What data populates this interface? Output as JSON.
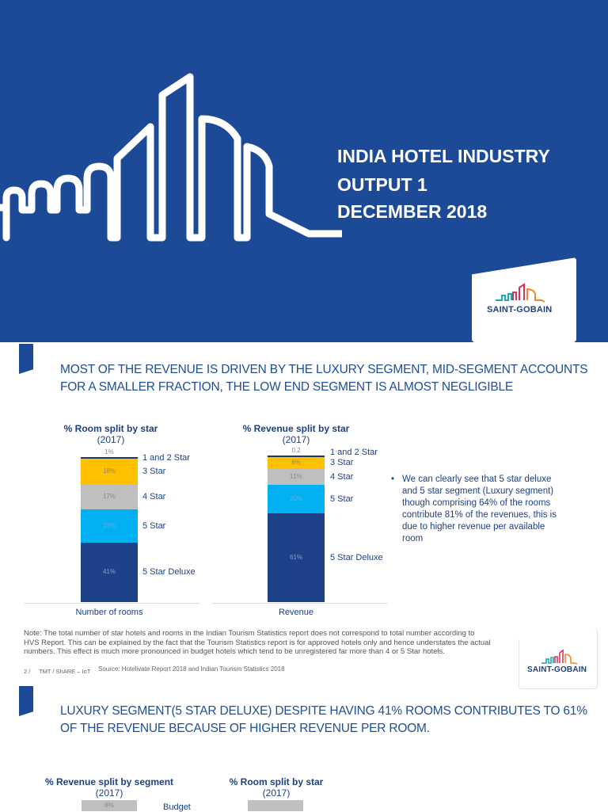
{
  "cover": {
    "title_lines": [
      "INDIA HOTEL INDUSTRY",
      "OUTPUT 1",
      "DECEMBER 2018"
    ],
    "logo_text": "SAINT-GOBAIN",
    "colors": {
      "background": "#1d4a96",
      "text": "#ffffff"
    }
  },
  "slide2": {
    "heading_lines": [
      "MOST OF THE REVENUE IS DRIVEN BY THE LUXURY SEGMENT, MID-SEGMENT ACCOUNTS",
      "FOR A SMALLER FRACTION, THE LOW END SEGMENT IS ALMOST NEGLIGIBLE"
    ],
    "bullet": "We can clearly see that 5 star deluxe and 5 star segment (Luxury segment) though comprising 64% of the rooms contribute 81% of the revenues, this is due to higher revenue per available room",
    "note": "Note:  The total number of star hotels and rooms in the Indian Tourism Statistics report does not correspond to total number according to HVS Report. This can be explained by the fact that the Tourism Statistics report is for approved hotels only and hence understates the actual numbers. This effect is much more pronounced in budget hotels which tend to be unregistered far more than 4 or 5 Star hotels.",
    "page_number": "2 /",
    "footer_left": "TMT / ShARE – IoT",
    "source": "Source: Hotelivate Report 2018 and Indian Tourism Statistics 2018",
    "logo_text": "SAINT-GOBAIN"
  },
  "chart_data": [
    {
      "type": "bar",
      "stacked": true,
      "title": "% Room split by star",
      "subtitle": "(2017)",
      "categories": [
        "Number of rooms"
      ],
      "series": [
        {
          "name": "5 Star Deluxe",
          "values": [
            41
          ],
          "label": "41%",
          "color": "#1d428a"
        },
        {
          "name": "5 Star",
          "values": [
            23
          ],
          "label": "23%",
          "color": "#00b0f0"
        },
        {
          "name": "4 Star",
          "values": [
            17
          ],
          "label": "17%",
          "color": "#bfbfbf"
        },
        {
          "name": "3 Star",
          "values": [
            18
          ],
          "label": "18%",
          "color": "#ffc000"
        },
        {
          "name": "1 and 2 Star",
          "values": [
            1
          ],
          "label": "1%",
          "color": "#1f3864"
        }
      ],
      "ylim": [
        0,
        100
      ]
    },
    {
      "type": "bar",
      "stacked": true,
      "title": "% Revenue split by star",
      "subtitle": "(2017)",
      "categories": [
        "Revenue"
      ],
      "series": [
        {
          "name": "5 Star Deluxe",
          "values": [
            61
          ],
          "label": "61%",
          "color": "#1d428a"
        },
        {
          "name": "5 Star",
          "values": [
            20
          ],
          "label": "20%",
          "color": "#00b0f0"
        },
        {
          "name": "4 Star",
          "values": [
            11
          ],
          "label": "11%",
          "color": "#bfbfbf"
        },
        {
          "name": "3 Star",
          "values": [
            8
          ],
          "label": "8%",
          "color": "#ffc000"
        },
        {
          "name": "1 and 2 Star",
          "values": [
            0.2
          ],
          "label": "0.2",
          "color": "#1f3864"
        }
      ],
      "ylim": [
        0,
        100
      ]
    }
  ],
  "slide3": {
    "heading_lines": [
      "LUXURY SEGMENT(5 STAR DELUXE) DESPITE HAVING 41% ROOMS CONTRIBUTES TO 61%",
      "OF THE REVENUE BECAUSE OF HIGHER REVENUE PER ROOM."
    ],
    "chart1": {
      "title": "% Revenue split by segment",
      "subtitle": "(2017)",
      "top_label": "8%",
      "top_name": "Budget"
    },
    "chart2": {
      "title": "% Room split by star",
      "subtitle": "(2017)"
    }
  }
}
